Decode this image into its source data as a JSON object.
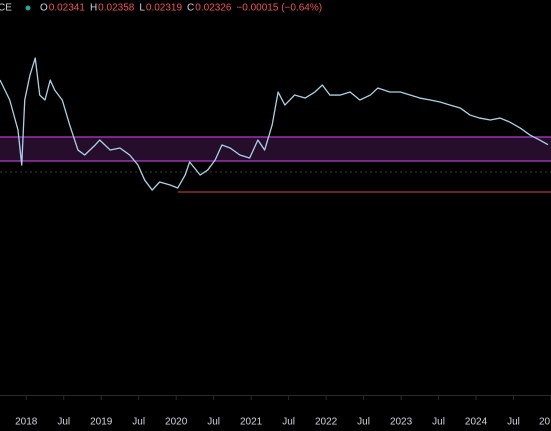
{
  "chart_data": {
    "type": "line",
    "symbol": "CE",
    "ohlc": [
      {
        "label": "O",
        "value": "0.02341"
      },
      {
        "label": "H",
        "value": "0.02358"
      },
      {
        "label": "L",
        "value": "0.02319"
      },
      {
        "label": "C",
        "value": "0.02326"
      }
    ],
    "change": "−0.00015 (−0.64%)",
    "xlim": [
      2017.65,
      2025.0
    ],
    "ylim": [
      0,
      0.0367
    ],
    "xticks": [
      2018,
      {
        "value": 2018.5,
        "label": "Jul"
      },
      2019,
      {
        "value": 2019.5,
        "label": "Jul"
      },
      2020,
      {
        "value": 2020.5,
        "label": "Jul"
      },
      2021,
      {
        "value": 2021.5,
        "label": "Jul"
      },
      2022,
      {
        "value": 2022.5,
        "label": "Jul"
      },
      2023,
      {
        "value": 2023.5,
        "label": "Jul"
      },
      2024,
      {
        "value": 2024.5,
        "label": "Jul"
      },
      {
        "value": 2025,
        "label": "20"
      }
    ],
    "series": [
      {
        "color": "#a6d4e6",
        "x": [
          2017.65,
          2017.78,
          2017.89,
          2017.94,
          2017.98,
          2018.05,
          2018.12,
          2018.18,
          2018.25,
          2018.32,
          2018.38,
          2018.48,
          2018.58,
          2018.69,
          2018.78,
          2018.92,
          2018.98,
          2019.12,
          2019.25,
          2019.38,
          2019.49,
          2019.58,
          2019.68,
          2019.78,
          2019.92,
          2020.02,
          2020.12,
          2020.18,
          2020.32,
          2020.42,
          2020.52,
          2020.61,
          2020.72,
          2020.85,
          2020.98,
          2021.09,
          2021.18,
          2021.28,
          2021.36,
          2021.45,
          2021.58,
          2021.72,
          2021.85,
          2021.95,
          2022.05,
          2022.19,
          2022.32,
          2022.45,
          2022.59,
          2022.69,
          2022.85,
          2022.99,
          2023.12,
          2023.25,
          2023.39,
          2023.52,
          2023.65,
          2023.79,
          2023.92,
          2024.05,
          2024.19,
          2024.32,
          2024.45,
          2024.59,
          2024.72,
          2024.85,
          2024.96
        ],
        "values": [
          0.02926,
          0.02741,
          0.02462,
          0.02137,
          0.02741,
          0.02973,
          0.03131,
          0.02787,
          0.02741,
          0.02926,
          0.02833,
          0.02741,
          0.02508,
          0.02276,
          0.0223,
          0.02323,
          0.02369,
          0.02276,
          0.02295,
          0.0223,
          0.02137,
          0.01997,
          0.01904,
          0.01979,
          0.01951,
          0.01923,
          0.02044,
          0.02165,
          0.02044,
          0.0209,
          0.02183,
          0.02323,
          0.02295,
          0.0223,
          0.02202,
          0.02369,
          0.02276,
          0.02508,
          0.02815,
          0.02694,
          0.02787,
          0.02759,
          0.02815,
          0.0288,
          0.02787,
          0.02787,
          0.02815,
          0.02741,
          0.02787,
          0.02852,
          0.02815,
          0.02815,
          0.02787,
          0.02759,
          0.02741,
          0.02722,
          0.02694,
          0.02666,
          0.02601,
          0.02573,
          0.02555,
          0.02573,
          0.02536,
          0.0248,
          0.02415,
          0.02369,
          0.02326
        ]
      }
    ],
    "zones": [
      {
        "from": 0.02174,
        "to": 0.02397,
        "color": "#b23cc9"
      }
    ],
    "hlines": [
      {
        "value": 0.01886,
        "start": 2020.02,
        "color": "#d6405a",
        "dash": false
      },
      {
        "value": 0.02072,
        "start": 2017.65,
        "color": "#3a3a3a",
        "dash": true
      }
    ]
  }
}
